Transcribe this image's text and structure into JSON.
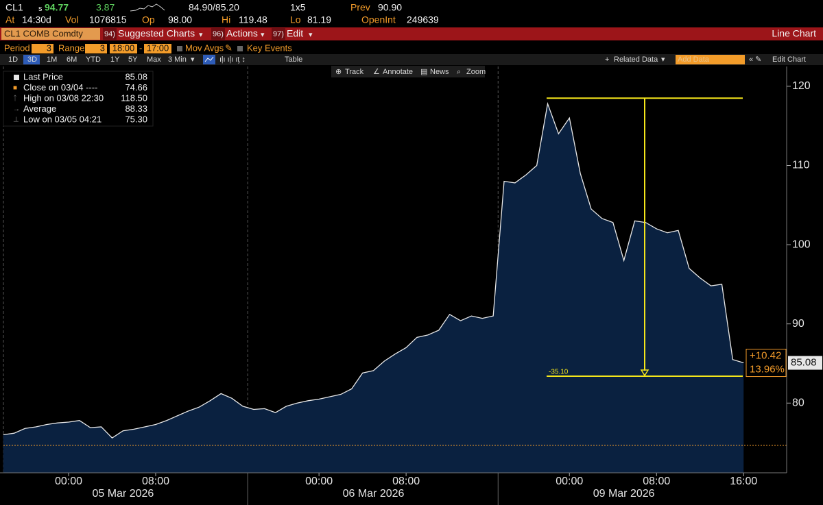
{
  "header": {
    "ticker": "CL1",
    "price_prefix": "s",
    "price": "94.77",
    "change": "3.87",
    "bid_ask": "84.90/85.20",
    "size": "1x5",
    "prev_label": "Prev",
    "prev": "90.90",
    "fields": [
      {
        "label": "At",
        "value": "14:30d"
      },
      {
        "label": "Vol",
        "value": "1076815"
      },
      {
        "label": "Op",
        "value": "98.00"
      },
      {
        "label": "Hi",
        "value": "119.48"
      },
      {
        "label": "Lo",
        "value": "81.19"
      },
      {
        "label": "OpenInt",
        "value": "249639"
      }
    ]
  },
  "menu": {
    "security": "CL1 COMB Comdty",
    "items": [
      {
        "num": "94)",
        "label": "Suggested Charts"
      },
      {
        "num": "96)",
        "label": "Actions"
      },
      {
        "num": "97)",
        "label": "Edit"
      }
    ],
    "chart_kind": "Line Chart"
  },
  "settings": {
    "period_label": "Period",
    "period": "3",
    "range_label": "Range",
    "range": "3",
    "from": "18:00",
    "to": "17:00",
    "mov_avgs": "Mov Avgs",
    "key_events": "Key Events"
  },
  "toolbar": {
    "ranges": [
      "1D",
      "3D",
      "1M",
      "6M",
      "YTD",
      "1Y",
      "5Y",
      "Max"
    ],
    "selected": 1,
    "interval": "3 Min",
    "table": "Table",
    "related": "Related Data",
    "add_data": "Add Data",
    "edit_chart": "Edit Chart"
  },
  "chart_tools": [
    "Track",
    "Annotate",
    "News",
    "Zoom"
  ],
  "chart_data": {
    "type": "area",
    "categories": [
      null,
      null,
      null,
      null,
      null,
      null,
      "00:00",
      null,
      null,
      null,
      null,
      null,
      null,
      null,
      "08:00",
      null,
      null,
      null,
      null,
      null,
      null,
      null,
      null,
      null,
      null,
      null,
      null,
      null,
      null,
      "00:00",
      null,
      null,
      null,
      null,
      null,
      null,
      null,
      "08:00",
      null,
      null,
      null,
      null,
      null,
      null,
      null,
      null,
      null,
      null,
      null,
      null,
      null,
      null,
      "00:00",
      null,
      null,
      null,
      null,
      null,
      null,
      null,
      "08:00",
      null,
      null,
      null,
      null,
      null,
      null,
      null,
      "16:00"
    ],
    "sessions": [
      "05 Mar 2026",
      "06 Mar 2026",
      "09 Mar 2026"
    ],
    "series": [
      {
        "name": "Last Price",
        "color": "#e8e8e8",
        "fill": "#0a2140",
        "values": [
          76.0,
          76.2,
          76.8,
          77.0,
          77.3,
          77.5,
          77.6,
          77.8,
          76.9,
          77.0,
          75.6,
          76.5,
          76.7,
          77.0,
          77.3,
          77.8,
          78.4,
          79.0,
          79.5,
          80.3,
          81.2,
          80.6,
          79.6,
          79.2,
          79.3,
          78.8,
          79.6,
          80.0,
          80.3,
          80.5,
          80.8,
          81.1,
          81.8,
          83.8,
          84.1,
          85.3,
          86.2,
          87.0,
          88.3,
          88.6,
          89.2,
          91.2,
          90.4,
          91.0,
          90.7,
          91.0,
          108.0,
          107.8,
          108.8,
          110.0,
          117.8,
          114.0,
          116.0,
          109.0,
          104.5,
          103.3,
          102.8,
          98.0,
          103.0,
          102.8,
          102.0,
          101.5,
          101.8,
          97.0,
          95.8,
          94.8,
          95.0,
          85.5,
          85.08
        ]
      }
    ],
    "stats": [
      {
        "name": "Close on 03/04 ----",
        "value": 74.66,
        "color": "#f39c2a"
      },
      {
        "name": "High on 03/08 22:30",
        "value": 118.5,
        "value_label": "118.50"
      },
      {
        "name": "Average",
        "value": 88.33
      },
      {
        "name": "Low on 03/05 04:21",
        "value": 75.3,
        "value_label": "75.30"
      }
    ],
    "measure": {
      "value": -35.1,
      "label": "-35.10",
      "color": "#f5e61a"
    },
    "last_change": "+10.42",
    "last_change_pct": "13.96%",
    "ylim": [
      71.2,
      122.5
    ],
    "yticks": [
      80,
      90,
      100,
      110,
      120
    ]
  }
}
